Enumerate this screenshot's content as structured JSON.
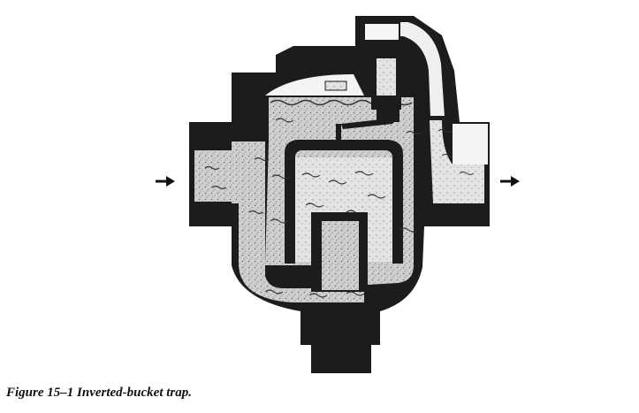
{
  "figure": {
    "caption": "Figure 15–1  Inverted-bucket trap.",
    "inlet_arrow_icon": "arrow-right-icon",
    "outlet_arrow_icon": "arrow-right-icon",
    "colors": {
      "body": "#1c1c1c",
      "water": "#cfcfcf",
      "speckle": "#6a6a6a",
      "steam": "#f4f4f4",
      "paper": "#ffffff"
    }
  }
}
